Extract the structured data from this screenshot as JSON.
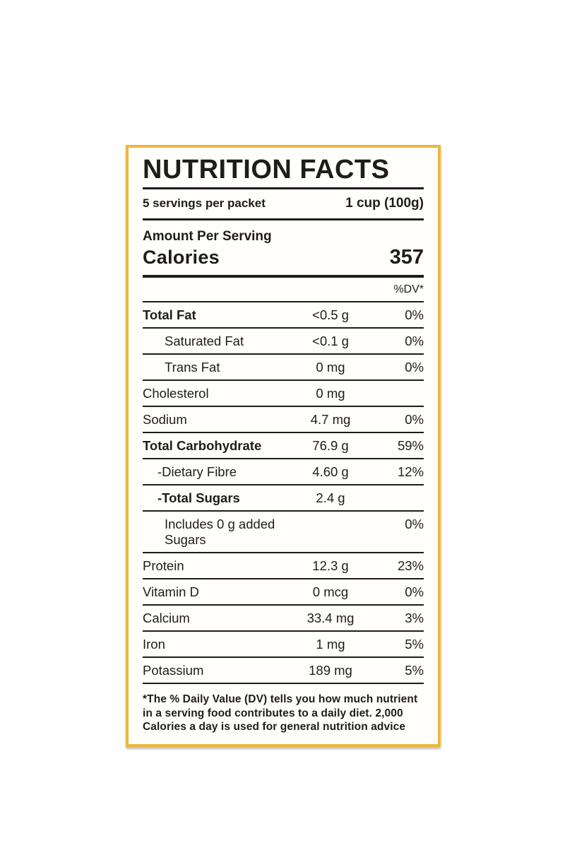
{
  "label": {
    "title": "NUTRITION FACTS",
    "servings_per_packet": "5 servings per packet",
    "serving_size": "1 cup (100g)",
    "amount_per_serving_label": "Amount Per Serving",
    "calories_label": "Calories",
    "calories_value": "357",
    "dv_header": "%DV*",
    "rows": [
      {
        "name": "Total Fat",
        "amount": "<0.5 g",
        "dv": "0%"
      },
      {
        "name": "Saturated Fat",
        "amount": "<0.1 g",
        "dv": "0%"
      },
      {
        "name": "Trans Fat",
        "amount": "0 mg",
        "dv": "0%"
      },
      {
        "name": "Cholesterol",
        "amount": "0 mg",
        "dv": ""
      },
      {
        "name": "Sodium",
        "amount": "4.7 mg",
        "dv": "0%"
      },
      {
        "name": "Total Carbohydrate",
        "amount": "76.9 g",
        "dv": "59%"
      },
      {
        "name": "-Dietary Fibre",
        "amount": "4.60 g",
        "dv": "12%"
      },
      {
        "name": "-Total Sugars",
        "amount": "2.4 g",
        "dv": ""
      },
      {
        "name": "Includes 0 g added Sugars",
        "amount": "",
        "dv": "0%"
      },
      {
        "name": "Protein",
        "amount": "12.3 g",
        "dv": "23%"
      },
      {
        "name": "Vitamin D",
        "amount": "0 mcg",
        "dv": "0%"
      },
      {
        "name": "Calcium",
        "amount": "33.4 mg",
        "dv": "3%"
      },
      {
        "name": "Iron",
        "amount": "1 mg",
        "dv": "5%"
      },
      {
        "name": "Potassium",
        "amount": "189 mg",
        "dv": "5%"
      }
    ],
    "footnote": "*The % Daily Value (DV) tells you how much nutrient in a serving food contributes to a daily diet. 2,000 Calories a day is used for general nutrition advice",
    "colors": {
      "border": "#EFB63C",
      "text": "#1D1D1B",
      "background": "#FFFEFB"
    }
  }
}
